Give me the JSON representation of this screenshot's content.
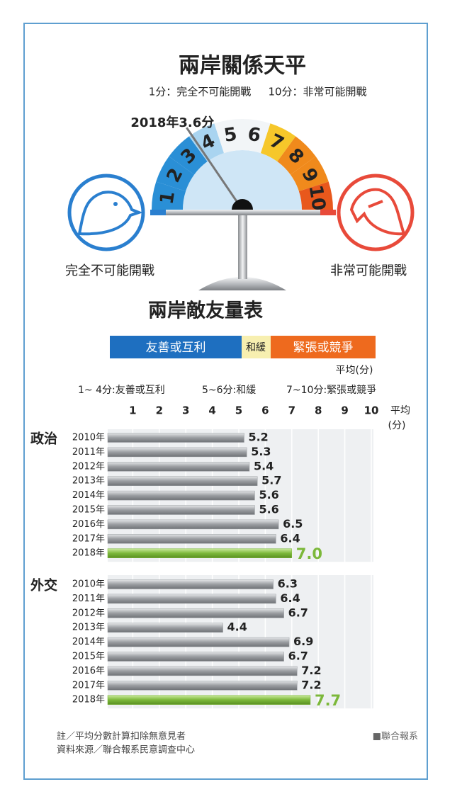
{
  "header": {
    "title": "兩岸關係天平",
    "subtitle_left": "1分：完全不可能開戰",
    "subtitle_right": "10分：非常可能開戰"
  },
  "chart_data": [
    {
      "type": "gauge",
      "annotation": "2018年3.6分",
      "value": 3.6,
      "lim": [
        0.5,
        10.5
      ],
      "ticks": [
        1,
        2,
        3,
        4,
        5,
        6,
        7,
        8,
        9,
        10
      ],
      "colors": [
        "#2a8fd6",
        "#2a8fd6",
        "#2a8fd6",
        "#a9d4f0",
        "#f2f5f7",
        "#f2f5f7",
        "#f6c72a",
        "#f08a1c",
        "#f08a1c",
        "#e8581c"
      ],
      "left_label": "完全不可能開戰",
      "right_label": "非常可能開戰"
    },
    {
      "type": "bar",
      "orientation": "horizontal",
      "title": "政治",
      "categories": [
        "2010年",
        "2011年",
        "2012年",
        "2013年",
        "2014年",
        "2015年",
        "2016年",
        "2017年",
        "2018年"
      ],
      "values": [
        5.2,
        5.3,
        5.4,
        5.7,
        5.6,
        5.6,
        6.5,
        6.4,
        7.0
      ],
      "value_labels": [
        "5.2",
        "5.3",
        "5.4",
        "5.7",
        "5.6",
        "5.6",
        "6.5",
        "6.4",
        "7.0"
      ],
      "colors": [
        "#9a9da1",
        "#9a9da1",
        "#9a9da1",
        "#9a9da1",
        "#9a9da1",
        "#9a9da1",
        "#9a9da1",
        "#9a9da1",
        "#7cb83a"
      ],
      "xlim": [
        0,
        10
      ],
      "xticks": [
        1,
        2,
        3,
        4,
        5,
        6,
        7,
        8,
        9,
        10
      ],
      "x_label": [
        "平均",
        "(分)"
      ],
      "grid": true
    },
    {
      "type": "bar",
      "orientation": "horizontal",
      "title": "外交",
      "categories": [
        "2010年",
        "2011年",
        "2012年",
        "2013年",
        "2014年",
        "2015年",
        "2016年",
        "2017年",
        "2018年"
      ],
      "values": [
        6.3,
        6.4,
        6.7,
        4.4,
        6.9,
        6.7,
        7.2,
        7.2,
        7.7
      ],
      "value_labels": [
        "6.3",
        "6.4",
        "6.7",
        "4.4",
        "6.9",
        "6.7",
        "7.2",
        "7.2",
        "7.7"
      ],
      "colors": [
        "#9a9da1",
        "#9a9da1",
        "#9a9da1",
        "#9a9da1",
        "#9a9da1",
        "#9a9da1",
        "#9a9da1",
        "#9a9da1",
        "#7cb83a"
      ],
      "xlim": [
        0,
        10
      ],
      "xticks": [
        1,
        2,
        3,
        4,
        5,
        6,
        7,
        8,
        9,
        10
      ],
      "grid": true
    }
  ],
  "scale": {
    "title": "兩岸敵友量表",
    "bands": [
      "友善或互利",
      "和緩",
      "緊張或競爭"
    ],
    "unit": "平均(分)",
    "ranges": [
      "1~ 4分:友善或互利",
      "5~6分:和緩",
      "7~10分:緊張或競爭"
    ]
  },
  "footer": {
    "note": "註／平均分數計算扣除無意見者",
    "source": "資料來源／聯合報系民意調查中心",
    "credit": "■聯合報系"
  }
}
